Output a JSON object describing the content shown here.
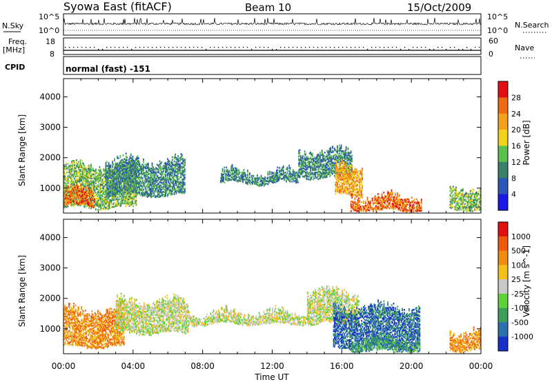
{
  "header": {
    "station": "Syowa East (fitACF)",
    "beam": "Beam 10",
    "date": "15/Oct/2009"
  },
  "top_panels": {
    "nsky_label": "N.Sky",
    "nsky_ticks": [
      "10^5",
      "10^0"
    ],
    "nsearch_label": "N.Search",
    "nsearch_ticks": [
      "10^5",
      "10^0"
    ],
    "freq_label": "Freq.",
    "freq_unit": "[MHz]",
    "freq_ticks": [
      "18",
      "8"
    ],
    "nave_label": "Nave",
    "nave_ticks": [
      "60",
      "0"
    ],
    "cpid_label": "CPID",
    "cpid_value": "normal (fast) -151"
  },
  "chart_data": [
    {
      "type": "heatmap",
      "title": "",
      "xlabel": "",
      "ylabel": "Slant Range [km]",
      "y_ticks": [
        "1000",
        "2000",
        "3000",
        "4000"
      ],
      "ylim": [
        180,
        4600
      ],
      "xlim": [
        0,
        24
      ],
      "colorbar_label": "Power [dB]",
      "colorbar_ticks": [
        "4",
        "8",
        "12",
        "16",
        "20",
        "24",
        "28"
      ],
      "colorbar_colors": [
        "#1a1ae6",
        "#2b58b8",
        "#3a7f6a",
        "#5bbf52",
        "#f2d21a",
        "#f4a21a",
        "#ef6b12",
        "#e01010"
      ],
      "echo_regions": [
        {
          "t0": 0.0,
          "t1": 4.2,
          "r_lo": 300,
          "r_hi": 1800,
          "level": 3
        },
        {
          "t0": 0.0,
          "t1": 1.8,
          "r_lo": 350,
          "r_hi": 1000,
          "level": 6
        },
        {
          "t0": 2.4,
          "t1": 7.0,
          "r_lo": 700,
          "r_hi": 2000,
          "level": 2
        },
        {
          "t0": 9.0,
          "t1": 13.5,
          "r_lo": 1100,
          "r_hi": 1600,
          "level": 2
        },
        {
          "t0": 13.5,
          "t1": 16.6,
          "r_lo": 1300,
          "r_hi": 2300,
          "level": 2
        },
        {
          "t0": 15.6,
          "t1": 17.2,
          "r_lo": 700,
          "r_hi": 1800,
          "level": 5
        },
        {
          "t0": 16.5,
          "t1": 20.6,
          "r_lo": 200,
          "r_hi": 800,
          "level": 6
        },
        {
          "t0": 22.2,
          "t1": 24.0,
          "r_lo": 250,
          "r_hi": 1100,
          "level": 3
        }
      ]
    },
    {
      "type": "heatmap",
      "title": "",
      "xlabel": "Time UT",
      "ylabel": "Slant Range [km]",
      "x_ticks": [
        "00:00",
        "04:00",
        "08:00",
        "12:00",
        "16:00",
        "20:00",
        "00:00"
      ],
      "y_ticks": [
        "1000",
        "2000",
        "3000",
        "4000"
      ],
      "ylim": [
        180,
        4600
      ],
      "xlim": [
        0,
        24
      ],
      "colorbar_label": "Velocity [m s^-1]",
      "colorbar_ticks": [
        "1000",
        "500",
        "100",
        "25",
        "-25",
        "-100",
        "-500",
        "-1000"
      ],
      "colorbar_colors": [
        "#1a2fc8",
        "#2e6fb0",
        "#3d9e5a",
        "#5fd23a",
        "#c8c8c8",
        "#f2c01a",
        "#f08a10",
        "#ef5a10",
        "#e01010"
      ],
      "echo_regions": [
        {
          "t0": 0.0,
          "t1": 3.5,
          "r_lo": 350,
          "r_hi": 1700,
          "level": 6
        },
        {
          "t0": 3.0,
          "t1": 7.2,
          "r_lo": 800,
          "r_hi": 2000,
          "level": 4
        },
        {
          "t0": 7.2,
          "t1": 14.0,
          "r_lo": 1100,
          "r_hi": 1600,
          "level": 4
        },
        {
          "t0": 14.0,
          "t1": 17.0,
          "r_lo": 1100,
          "r_hi": 2300,
          "level": 4
        },
        {
          "t0": 15.5,
          "t1": 20.5,
          "r_lo": 300,
          "r_hi": 1800,
          "level": 1
        },
        {
          "t0": 16.5,
          "t1": 20.5,
          "r_lo": 200,
          "r_hi": 700,
          "level": 2
        },
        {
          "t0": 22.2,
          "t1": 24.0,
          "r_lo": 250,
          "r_hi": 1000,
          "level": 6
        }
      ]
    }
  ]
}
